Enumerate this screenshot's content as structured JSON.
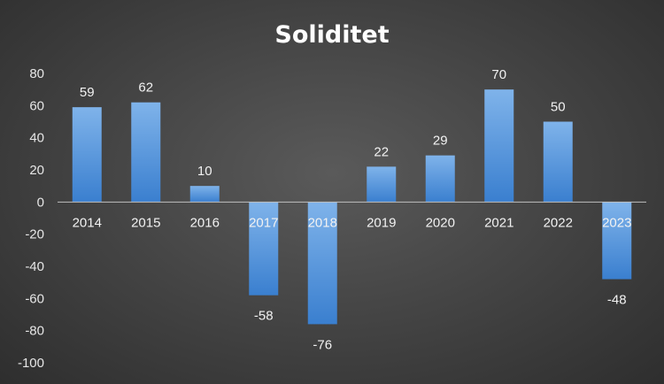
{
  "chart_data": {
    "type": "bar",
    "title": "Soliditet",
    "xlabel": "",
    "ylabel": "",
    "categories": [
      "2014",
      "2015",
      "2016",
      "2017",
      "2018",
      "2019",
      "2020",
      "2021",
      "2022",
      "2023"
    ],
    "values": [
      59,
      62,
      10,
      -58,
      -76,
      22,
      29,
      70,
      50,
      -48
    ],
    "data_labels": [
      "59",
      "62",
      "10",
      "-58",
      "-76",
      "22",
      "29",
      "70",
      "50",
      "-48"
    ],
    "ylim": [
      -100,
      80
    ],
    "yticks": [
      "80",
      "60",
      "40",
      "20",
      "0",
      "-20",
      "-40",
      "-60",
      "-80",
      "-100"
    ],
    "grid": false,
    "legend": "none",
    "bar_color_top": "#7fb3ea",
    "bar_color_bottom": "#3a7fcf",
    "axis_color": "#bfbfbf"
  }
}
